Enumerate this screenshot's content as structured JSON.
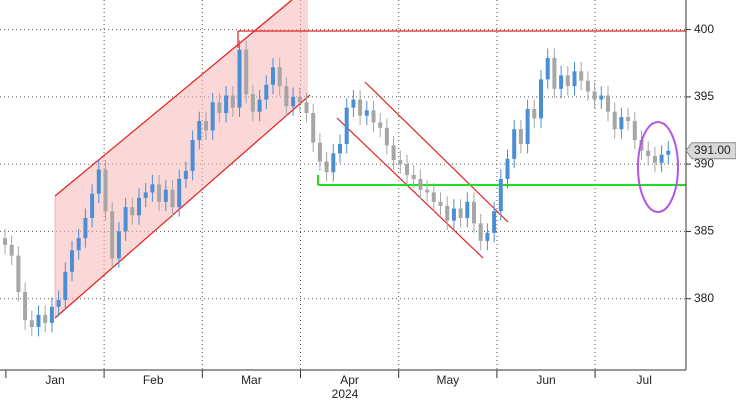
{
  "chart_data": {
    "type": "candlestick",
    "months": [
      "Jan",
      "Feb",
      "Mar",
      "Apr",
      "May",
      "Jun",
      "Jul"
    ],
    "year_label": "2024",
    "open": [
      384.5,
      384.0,
      383.2,
      380.5,
      378.4,
      377.9,
      378.8,
      378.2,
      379.4,
      379.9,
      382.0,
      383.6,
      384.5,
      386.0,
      387.8,
      389.6,
      386.5,
      383.0,
      385.0,
      386.8,
      386.2,
      387.5,
      387.9,
      388.5,
      387.2,
      388.1,
      386.8,
      388.9,
      389.5,
      391.8,
      393.2,
      392.5,
      394.6,
      393.8,
      395.1,
      394.2,
      398.5,
      395.2,
      393.9,
      394.8,
      395.9,
      397.2,
      395.8,
      394.3,
      395.0,
      394.6,
      393.8,
      391.6,
      390.2,
      389.4,
      390.8,
      391.5,
      394.2,
      394.8,
      393.6,
      394.0,
      393.1,
      392.7,
      391.4,
      390.3,
      390.0,
      389.2,
      388.9,
      388.1,
      387.9,
      387.2,
      386.9,
      385.8,
      386.7,
      386.0,
      387.2,
      385.6,
      384.3,
      384.9,
      386.5,
      388.9,
      390.4,
      392.6,
      391.5,
      394.1,
      393.4,
      396.3,
      397.9,
      395.6,
      396.6,
      395.8,
      396.9,
      396.2,
      395.4,
      394.8,
      395.1,
      393.9,
      392.6,
      393.5,
      393.2,
      391.8,
      391.0,
      390.6,
      390.1,
      390.7
    ],
    "high": [
      385.2,
      384.7,
      383.9,
      381.2,
      379.1,
      379.5,
      379.5,
      380.1,
      380.6,
      382.7,
      384.3,
      385.2,
      386.7,
      388.5,
      390.3,
      390.3,
      387.2,
      385.7,
      387.5,
      387.5,
      388.2,
      388.6,
      389.2,
      389.2,
      388.8,
      388.8,
      389.6,
      390.2,
      392.5,
      393.9,
      393.9,
      395.3,
      395.3,
      395.8,
      395.8,
      399.2,
      399.2,
      395.9,
      395.5,
      396.6,
      397.9,
      397.9,
      396.5,
      395.7,
      395.7,
      395.3,
      394.5,
      392.3,
      390.9,
      391.5,
      392.2,
      394.9,
      395.5,
      395.5,
      394.7,
      394.7,
      393.8,
      393.4,
      392.1,
      391.0,
      390.7,
      389.9,
      389.6,
      388.8,
      388.6,
      387.9,
      387.6,
      387.4,
      387.4,
      387.9,
      387.9,
      386.3,
      385.6,
      387.2,
      389.6,
      391.1,
      393.3,
      393.3,
      394.8,
      394.8,
      397.0,
      398.6,
      398.6,
      397.3,
      397.3,
      397.6,
      397.6,
      396.9,
      396.1,
      395.8,
      395.8,
      394.6,
      394.2,
      394.2,
      393.9,
      392.5,
      391.7,
      391.3,
      391.4,
      391.7
    ],
    "low": [
      383.3,
      382.5,
      379.8,
      377.7,
      377.2,
      377.2,
      377.5,
      377.5,
      378.7,
      379.2,
      381.3,
      382.9,
      383.8,
      385.3,
      387.1,
      385.8,
      382.3,
      382.3,
      384.3,
      385.5,
      385.5,
      386.8,
      387.2,
      386.5,
      386.5,
      386.1,
      386.1,
      388.2,
      388.8,
      391.1,
      391.8,
      391.8,
      393.1,
      393.1,
      393.5,
      393.5,
      394.5,
      393.2,
      393.2,
      394.1,
      395.2,
      395.1,
      393.6,
      393.6,
      393.9,
      393.1,
      390.9,
      389.5,
      388.7,
      388.7,
      390.1,
      390.8,
      393.5,
      392.9,
      392.9,
      392.4,
      392.0,
      390.7,
      389.6,
      389.3,
      388.5,
      388.2,
      387.4,
      387.2,
      386.5,
      386.2,
      385.1,
      385.1,
      385.3,
      385.3,
      384.9,
      383.6,
      383.6,
      384.2,
      385.8,
      388.2,
      389.7,
      390.8,
      390.8,
      392.7,
      392.7,
      395.6,
      394.9,
      394.9,
      395.1,
      395.1,
      395.5,
      394.7,
      394.1,
      394.1,
      393.2,
      391.9,
      391.9,
      392.5,
      391.1,
      390.3,
      389.9,
      389.4,
      389.4,
      390.0
    ],
    "close": [
      384.0,
      383.2,
      380.5,
      378.4,
      377.9,
      378.8,
      378.2,
      379.4,
      379.9,
      382.0,
      383.6,
      384.5,
      386.0,
      387.8,
      389.6,
      386.5,
      383.0,
      385.0,
      386.8,
      386.2,
      387.5,
      387.9,
      388.5,
      387.2,
      388.1,
      386.8,
      388.9,
      389.5,
      391.8,
      393.2,
      392.5,
      394.6,
      393.8,
      395.1,
      394.2,
      398.5,
      395.2,
      393.9,
      394.8,
      395.9,
      397.2,
      395.8,
      394.3,
      395.0,
      394.6,
      393.8,
      391.6,
      390.2,
      389.4,
      390.8,
      391.5,
      394.2,
      394.8,
      393.6,
      394.0,
      393.1,
      392.7,
      391.4,
      390.3,
      390.0,
      389.2,
      388.9,
      388.1,
      387.9,
      387.2,
      386.9,
      385.8,
      386.7,
      386.0,
      387.2,
      385.6,
      384.3,
      384.9,
      386.5,
      388.9,
      390.4,
      392.6,
      391.5,
      394.1,
      393.4,
      396.3,
      397.9,
      395.6,
      396.6,
      395.8,
      396.9,
      396.2,
      395.4,
      394.8,
      395.1,
      393.9,
      392.6,
      393.5,
      393.2,
      391.8,
      391.0,
      390.6,
      390.1,
      390.7,
      391.0
    ],
    "up_color": "#4a8fd6",
    "down_color": "#a6a6a6",
    "last_value": 391.0,
    "last_value_label": "391.00",
    "ylim": [
      374.7,
      402.2
    ],
    "yticks": [
      380,
      385,
      390,
      395,
      400
    ],
    "grid": true
  }
}
